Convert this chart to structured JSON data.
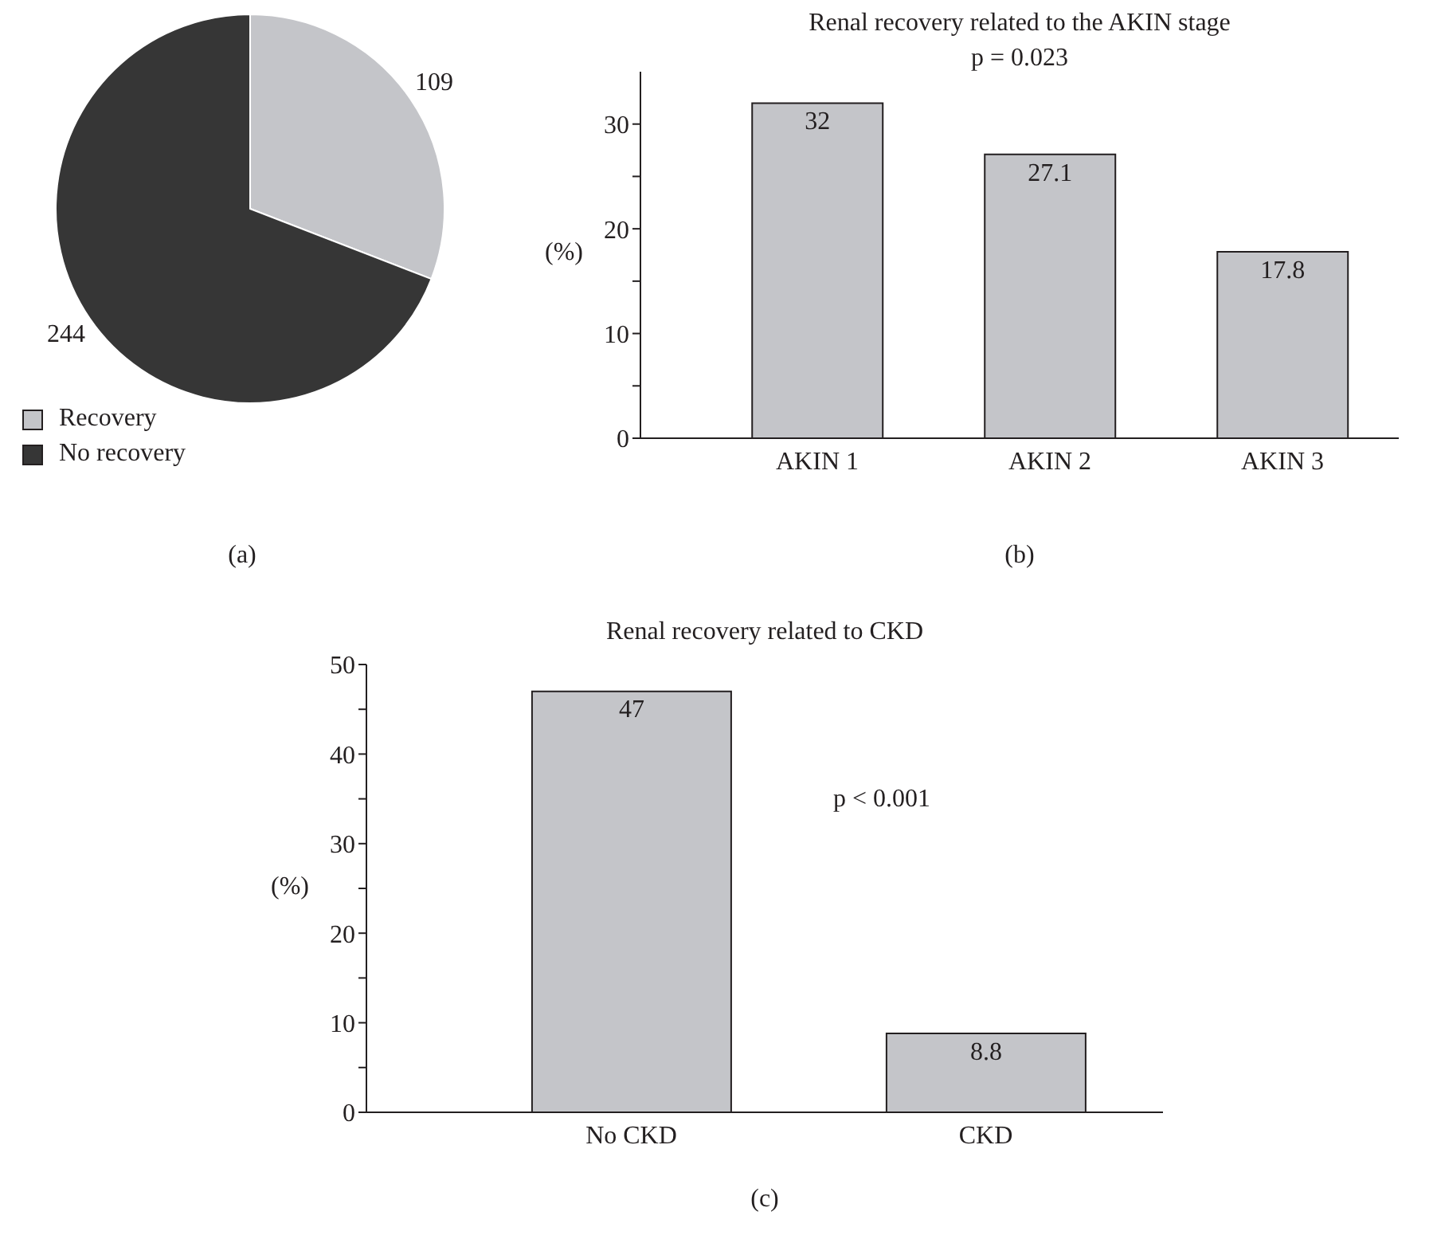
{
  "chart_data": [
    {
      "type": "pie",
      "categories": [
        "Recovery",
        "No recovery"
      ],
      "values": [
        109,
        244
      ],
      "colors": [
        "#c4c5c9",
        "#363636"
      ],
      "data_labels": true,
      "legend": "bottom left",
      "annotations": [
        "(a)"
      ]
    },
    {
      "type": "bar",
      "title": "Renal recovery related to the AKIN stage",
      "subtitle": "p = 0.023",
      "ylabel": "(%)",
      "categories": [
        "AKIN 1",
        "AKIN 2",
        "AKIN 3"
      ],
      "values": [
        32,
        27.1,
        17.8
      ],
      "color": "#c4c5c9",
      "data_labels": true,
      "ylim": [
        0,
        35
      ],
      "yticks": [
        0,
        {
          "value": 5,
          "label": null
        },
        10,
        {
          "value": 15,
          "label": null
        },
        20,
        {
          "value": 25,
          "label": null
        },
        30
      ],
      "annotations": [
        "(b)"
      ]
    },
    {
      "type": "bar",
      "title": "Renal recovery related to CKD",
      "ylabel": "(%)",
      "categories": [
        "No CKD",
        "CKD"
      ],
      "values": [
        47,
        8.8
      ],
      "color": "#c4c5c9",
      "data_labels": true,
      "ylim": [
        0,
        50
      ],
      "yticks": [
        0,
        {
          "value": 5,
          "label": null
        },
        10,
        {
          "value": 15,
          "label": null
        },
        20,
        {
          "value": 25,
          "label": null
        },
        30,
        {
          "value": 35,
          "label": null
        },
        40,
        {
          "value": 45,
          "label": null
        },
        50
      ],
      "annotations": [
        "(c)",
        "p < 0.001"
      ]
    }
  ]
}
